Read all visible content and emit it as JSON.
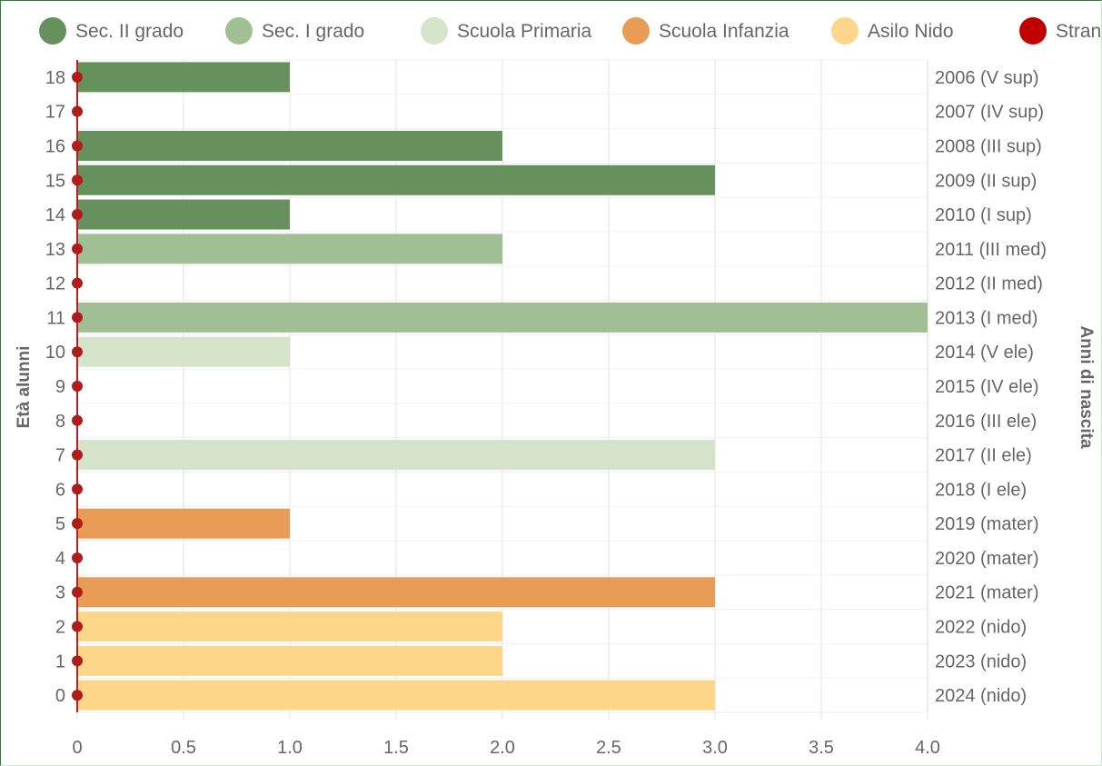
{
  "chart_data": {
    "type": "bar",
    "orientation": "horizontal",
    "xlim": [
      0,
      4.0
    ],
    "x_ticks": [
      "0",
      "0.5",
      "1.0",
      "1.5",
      "2.0",
      "2.5",
      "3.0",
      "3.5",
      "4.0"
    ],
    "ylabel_left": "Età alunni",
    "ylabel_right": "Anni di nascita",
    "grid": true,
    "legend_position": "top",
    "categories": [
      "18",
      "17",
      "16",
      "15",
      "14",
      "13",
      "12",
      "11",
      "10",
      "9",
      "8",
      "7",
      "6",
      "5",
      "4",
      "3",
      "2",
      "1",
      "0"
    ],
    "birth_years": [
      "2006 (V sup)",
      "2007 (IV sup)",
      "2008 (III sup)",
      "2009 (II sup)",
      "2010 (I sup)",
      "2011 (III med)",
      "2012 (II med)",
      "2013 (I med)",
      "2014 (V ele)",
      "2015 (IV ele)",
      "2016 (III ele)",
      "2017 (II ele)",
      "2018 (I ele)",
      "2019 (mater)",
      "2020 (mater)",
      "2021 (mater)",
      "2022 (nido)",
      "2023 (nido)",
      "2024 (nido)"
    ],
    "series": [
      {
        "name": "Sec. II grado",
        "color": "#66915c",
        "values": [
          1,
          0,
          2,
          3,
          1,
          0,
          0,
          0,
          0,
          0,
          0,
          0,
          0,
          0,
          0,
          0,
          0,
          0,
          0
        ]
      },
      {
        "name": "Sec. I grado",
        "color": "#a1bf94",
        "values": [
          0,
          0,
          0,
          0,
          0,
          2,
          0,
          4,
          0,
          0,
          0,
          0,
          0,
          0,
          0,
          0,
          0,
          0,
          0
        ]
      },
      {
        "name": "Scuola Primaria",
        "color": "#d5e3c8",
        "values": [
          0,
          0,
          0,
          0,
          0,
          0,
          0,
          0,
          1,
          0,
          0,
          3,
          0,
          0,
          0,
          0,
          0,
          0,
          0
        ]
      },
      {
        "name": "Scuola Infanzia",
        "color": "#e89c55",
        "values": [
          0,
          0,
          0,
          0,
          0,
          0,
          0,
          0,
          0,
          0,
          0,
          0,
          0,
          1,
          0,
          3,
          0,
          0,
          0
        ]
      },
      {
        "name": "Asilo Nido",
        "color": "#fdd68a",
        "values": [
          0,
          0,
          0,
          0,
          0,
          0,
          0,
          0,
          0,
          0,
          0,
          0,
          0,
          0,
          0,
          0,
          2,
          2,
          3
        ]
      },
      {
        "name": "Stranieri",
        "color": "#c00000",
        "values": [
          0,
          0,
          0,
          0,
          0,
          0,
          0,
          0,
          0,
          0,
          0,
          0,
          0,
          0,
          0,
          0,
          0,
          0,
          0
        ]
      }
    ]
  }
}
